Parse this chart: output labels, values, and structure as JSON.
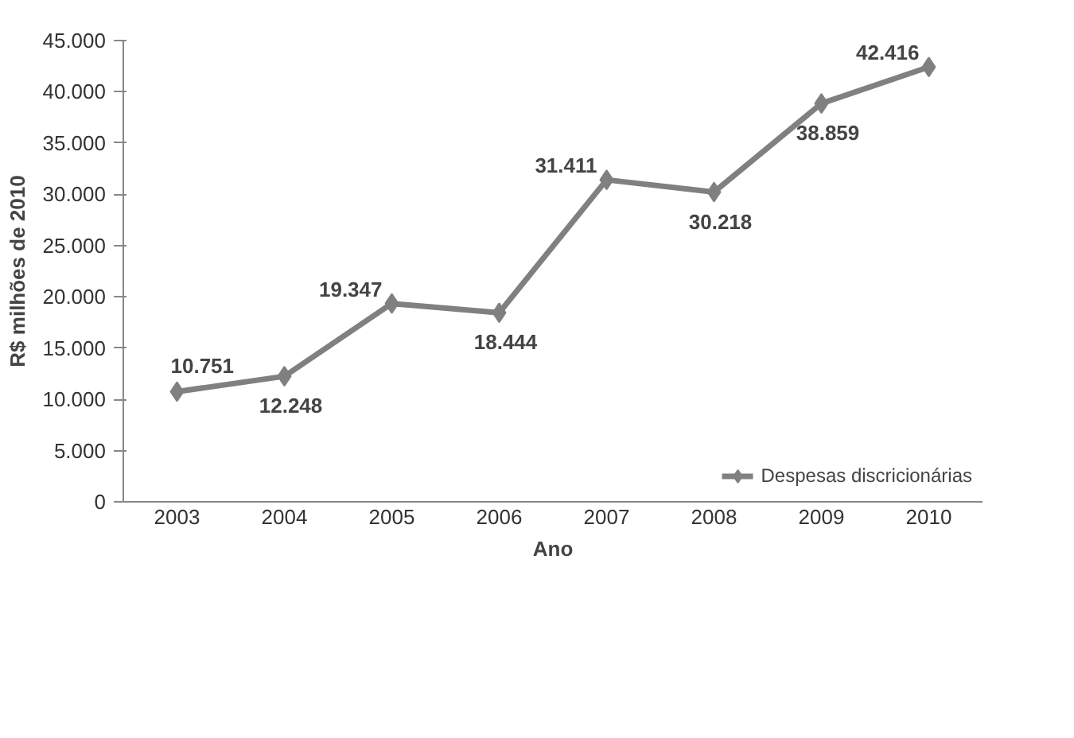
{
  "chart_data": {
    "type": "line",
    "xlabel": "Ano",
    "ylabel": "R$ milhões de 2010",
    "categories": [
      "2003",
      "2004",
      "2005",
      "2006",
      "2007",
      "2008",
      "2009",
      "2010"
    ],
    "series": [
      {
        "name": "Despesas discricionárias",
        "color": "#808080",
        "values": [
          10751,
          12248,
          19347,
          18444,
          31411,
          30218,
          38859,
          42416
        ],
        "value_labels": [
          "10.751",
          "12.248",
          "19.347",
          "18.444",
          "31.411",
          "30.218",
          "38.859",
          "42.416"
        ]
      }
    ],
    "ylim": [
      0,
      45000
    ],
    "yticks": [
      0,
      {
        "value": 5000,
        "label": "5.000"
      },
      {
        "value": 10000,
        "label": "10.000"
      },
      {
        "value": 15000,
        "label": "15.000"
      },
      {
        "value": 20000,
        "label": "20.000"
      },
      {
        "value": 25000,
        "label": "25.000"
      },
      {
        "value": 30000,
        "label": "30.000"
      },
      {
        "value": 35000,
        "label": "35.000"
      },
      {
        "value": 40000,
        "label": "40.000"
      },
      {
        "value": 45000,
        "label": "45.000"
      }
    ],
    "grid": false,
    "legend": "bottom right",
    "marker": "diamond",
    "line_style": "solid"
  }
}
